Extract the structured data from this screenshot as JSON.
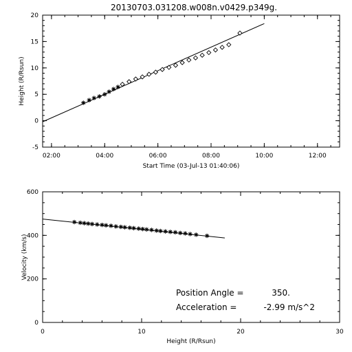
{
  "title": "20130703.031208.w008n.v0429.p349g.",
  "chart_data": [
    {
      "type": "scatter",
      "xlabel": "Start Time (03-Jul-13 01:40:06)",
      "ylabel": "Height (R/Rsun)",
      "xlim": [
        "01:40",
        "12:50"
      ],
      "ylim": [
        -5,
        20
      ],
      "xticks": [
        "02:00",
        "04:00",
        "06:00",
        "08:00",
        "10:00",
        "12:00"
      ],
      "yticks": [
        "-5",
        "0",
        "5",
        "10",
        "15",
        "20"
      ],
      "fit_line": {
        "x": [
          "01:40",
          "10:00"
        ],
        "y": [
          -0.2,
          18.4
        ]
      },
      "asterisk_points": {
        "x": [
          "03:12",
          "03:25",
          "03:36",
          "03:48",
          "04:00",
          "04:10",
          "04:20",
          "04:30"
        ],
        "y": [
          3.4,
          3.9,
          4.3,
          4.6,
          5.0,
          5.5,
          6.0,
          6.4
        ]
      },
      "diamond_points": {
        "x": [
          "04:40",
          "04:55",
          "05:10",
          "05:25",
          "05:40",
          "05:55",
          "06:10",
          "06:25",
          "06:40",
          "06:55",
          "07:10",
          "07:25",
          "07:40",
          "07:55",
          "08:10",
          "08:25",
          "08:40",
          "09:05"
        ],
        "y": [
          6.9,
          7.4,
          7.9,
          8.3,
          8.8,
          9.2,
          9.7,
          10.1,
          10.5,
          11.0,
          11.5,
          11.9,
          12.4,
          12.9,
          13.4,
          13.9,
          14.4,
          16.6
        ]
      }
    },
    {
      "type": "scatter",
      "xlabel": "Height (R/Rsun)",
      "ylabel": "Velocity (km/s)",
      "xlim": [
        0,
        30
      ],
      "ylim": [
        0,
        600
      ],
      "xticks": [
        "0",
        "10",
        "20",
        "30"
      ],
      "yticks": [
        "0",
        "200",
        "400",
        "600"
      ],
      "fit_line": {
        "x": [
          0,
          18.4
        ],
        "y": [
          475,
          388
        ]
      },
      "points": {
        "x": [
          3.2,
          3.8,
          4.2,
          4.6,
          5.0,
          5.5,
          6.0,
          6.4,
          6.9,
          7.4,
          7.9,
          8.3,
          8.8,
          9.2,
          9.7,
          10.1,
          10.5,
          11.0,
          11.5,
          11.9,
          12.4,
          12.9,
          13.4,
          13.9,
          14.4,
          14.9,
          15.5,
          16.6
        ],
        "y": [
          461,
          458,
          456,
          454,
          452,
          450,
          448,
          446,
          444,
          441,
          439,
          437,
          435,
          433,
          431,
          429,
          427,
          425,
          422,
          420,
          418,
          416,
          414,
          411,
          409,
          406,
          403,
          398
        ]
      }
    }
  ],
  "annotations": {
    "position_angle_label": "Position Angle =",
    "position_angle_value": "350.",
    "acceleration_label": "Acceleration =",
    "acceleration_value": "-2.99 m/s^2"
  }
}
